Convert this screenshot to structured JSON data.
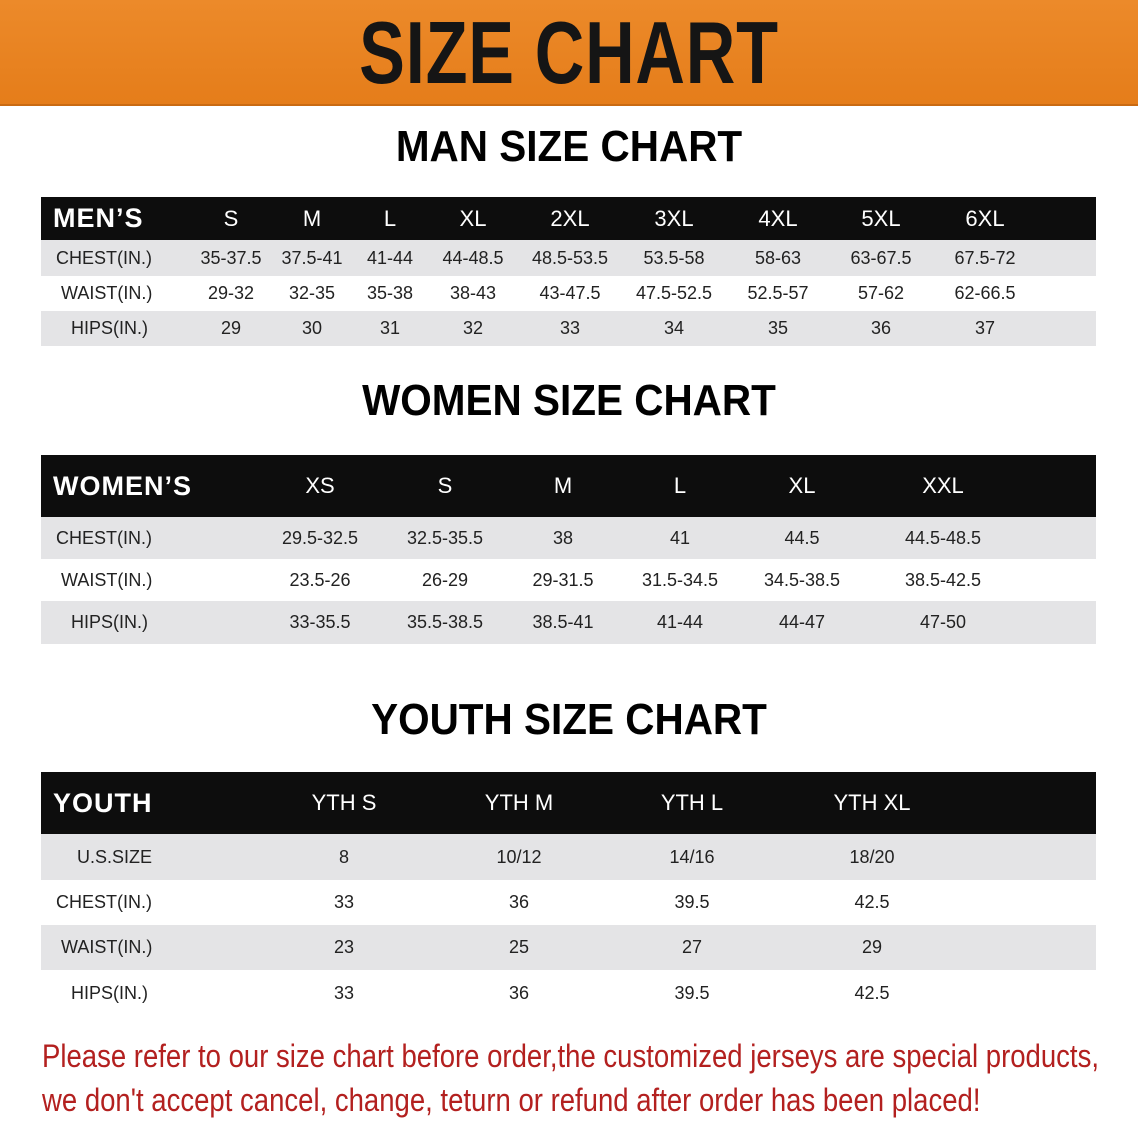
{
  "banner": {
    "title": "SIZE CHART"
  },
  "men": {
    "title": "MAN SIZE CHART",
    "header": [
      "MEN’S",
      "S",
      "M",
      "L",
      "XL",
      "2XL",
      "3XL",
      "4XL",
      "5XL",
      "6XL"
    ],
    "rows": [
      [
        "CHEST(IN.)",
        "35-37.5",
        "37.5-41",
        "41-44",
        "44-48.5",
        "48.5-53.5",
        "53.5-58",
        "58-63",
        "63-67.5",
        "67.5-72"
      ],
      [
        "WAIST(IN.)",
        "29-32",
        "32-35",
        "35-38",
        "38-43",
        "43-47.5",
        "47.5-52.5",
        "52.5-57",
        "57-62",
        "62-66.5"
      ],
      [
        "HIPS(IN.)",
        "29",
        "30",
        "31",
        "32",
        "33",
        "34",
        "35",
        "36",
        "37"
      ]
    ]
  },
  "women": {
    "title": "WOMEN SIZE CHART",
    "header": [
      "WOMEN’S",
      "XS",
      "S",
      "M",
      "L",
      "XL",
      "XXL"
    ],
    "rows": [
      [
        "CHEST(IN.)",
        "29.5-32.5",
        "32.5-35.5",
        "38",
        "41",
        "44.5",
        "44.5-48.5"
      ],
      [
        "WAIST(IN.)",
        "23.5-26",
        "26-29",
        "29-31.5",
        "31.5-34.5",
        "34.5-38.5",
        "38.5-42.5"
      ],
      [
        "HIPS(IN.)",
        "33-35.5",
        "35.5-38.5",
        "38.5-41",
        "41-44",
        "44-47",
        "47-50"
      ]
    ]
  },
  "youth": {
    "title": "YOUTH SIZE CHART",
    "header": [
      "YOUTH",
      "YTH S",
      "YTH M",
      "YTH L",
      "YTH XL"
    ],
    "rows": [
      [
        "U.S.SIZE",
        "8",
        "10/12",
        "14/16",
        "18/20"
      ],
      [
        "CHEST(IN.)",
        "33",
        "36",
        "39.5",
        "42.5"
      ],
      [
        "WAIST(IN.)",
        "23",
        "25",
        "27",
        "29"
      ],
      [
        "HIPS(IN.)",
        "33",
        "36",
        "39.5",
        "42.5"
      ]
    ]
  },
  "note": {
    "line1": "Please refer to our size chart before order,the customized jerseys are special products,",
    "line2": "we don't accept cancel, change, teturn or refund after order has been placed!"
  },
  "colors": {
    "banner": "#e8821f",
    "header": "#0d0d0d",
    "note": "#b3201f",
    "stripe": "#e4e4e6"
  }
}
